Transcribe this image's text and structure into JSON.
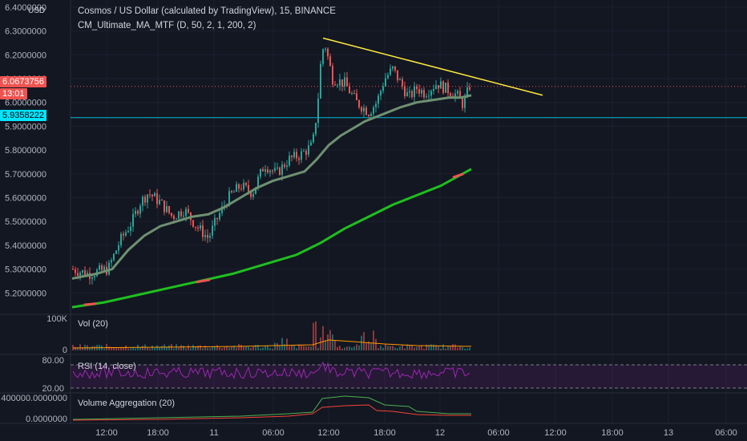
{
  "header": {
    "currency_label": "USD",
    "symbol_title": "Cosmos / US Dollar (calculated by TradingView), 15, BINANCE",
    "indicator_label": "CM_Ultimate_MA_MTF (D, 50, 2, 1, 200, 2)"
  },
  "price_axis": {
    "ticks": [
      "6.4000000",
      "6.3000000",
      "6.2000000",
      "6.1000000",
      "6.0000000",
      "5.9000000",
      "5.8000000",
      "5.7000000",
      "5.6000000",
      "5.5000000",
      "5.4000000",
      "5.3000000",
      "5.2000000"
    ],
    "last_price": "6.0673756",
    "countdown": "13:01",
    "horizontal_line_price": "5.9358222"
  },
  "time_axis": {
    "labels": [
      "12:00",
      "18:00",
      "11",
      "06:00",
      "12:00",
      "18:00",
      "12",
      "06:00",
      "12:00",
      "18:00",
      "13",
      "06:00"
    ]
  },
  "panes": {
    "volume": {
      "title": "Vol (20)",
      "ticks": [
        "100K",
        "0"
      ]
    },
    "rsi": {
      "title": "RSI (14, close)",
      "ticks": [
        "80.00",
        "20.00"
      ]
    },
    "vol_agg": {
      "title": "Volume Aggregation (20)",
      "ticks": [
        "400000.0000000",
        "0.0000000"
      ]
    }
  },
  "colors": {
    "background": "#131722",
    "up": "#26a69a",
    "down": "#ef5350",
    "ma50": "#6e9171",
    "ma200": "#1fbf1f",
    "trendline": "#ffeb3b",
    "hline": "#00bcd4",
    "rsi": "#9c27b0",
    "last_price_badge": "#ef5350",
    "hline_badge": "#00e5ff"
  }
}
